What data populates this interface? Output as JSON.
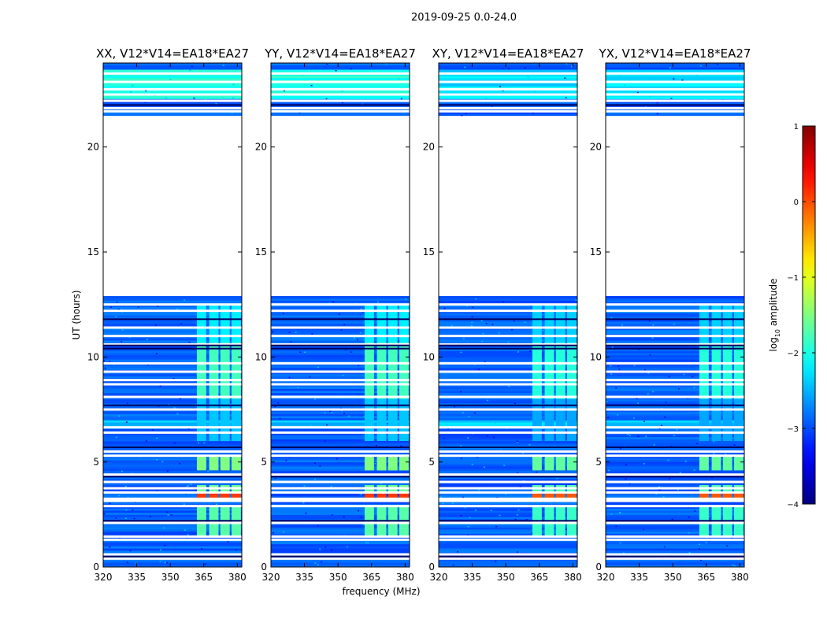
{
  "figure_title": "2019-09-25 0.0-24.0",
  "chart_data": {
    "type": "heatmap",
    "title": "2019-09-25 0.0-24.0",
    "xlabel": "frequency (MHz)",
    "ylabel": "UT (hours)",
    "xlim": [
      320,
      382
    ],
    "ylim": [
      0,
      24
    ],
    "xticks": [
      320,
      335,
      350,
      365,
      380
    ],
    "xtick_labels": [
      "320",
      "335",
      "350",
      "365",
      "380"
    ],
    "yticks": [
      0,
      5,
      10,
      15,
      20
    ],
    "ytick_labels": [
      "0",
      "5",
      "10",
      "15",
      "20"
    ],
    "panels": [
      {
        "title": "XX, V12*V14=EA18*EA27",
        "pol": "XX"
      },
      {
        "title": "YY, V12*V14=EA18*EA27",
        "pol": "YY"
      },
      {
        "title": "XY, V12*V14=EA18*EA27",
        "pol": "XY"
      },
      {
        "title": "YX, V12*V14=EA18*EA27",
        "pol": "YX"
      }
    ],
    "colorbar": {
      "label_main": "log",
      "label_sub": "10",
      "label_rest": " amplitude",
      "range": [
        -4,
        1
      ],
      "ticks": [
        1,
        0,
        -1,
        -2,
        -3,
        -4
      ],
      "tick_labels": [
        "1",
        "0",
        "−1",
        "−2",
        "−3",
        "−4"
      ],
      "colormap": "jet"
    },
    "data_gap_hours": [
      12.8,
      21.5
    ],
    "data_end_hours": 24.0,
    "flagged_time_rows_hours": [
      0.4,
      0.6,
      1.3,
      1.45,
      2.1,
      2.9,
      3.15,
      3.25,
      3.55,
      3.75,
      4.05,
      4.4,
      5.3,
      5.5,
      6.4,
      6.65,
      7.5,
      8.1,
      8.7,
      8.9,
      9.3,
      9.7,
      10.6,
      11.0,
      11.4,
      12.2,
      12.5,
      21.7,
      21.85,
      22.2,
      22.5,
      22.75,
      23.1,
      23.5
    ],
    "dark_time_rows_hours": [
      0.5,
      2.2,
      4.3,
      5.7,
      7.7,
      10.4,
      10.55,
      11.8,
      22.0
    ],
    "rfi_channel_centers_mhz": [
      364.0,
      369.5,
      374.5,
      379.5
    ],
    "rfi_channel_width_mhz": 4.2,
    "rfi_bands": [
      {
        "t0": 3.3,
        "t1": 3.55,
        "log_amp": 0.1
      },
      {
        "t0": 3.55,
        "t1": 3.9,
        "log_amp": -1.6
      },
      {
        "t0": 1.5,
        "t1": 2.9,
        "log_amp": -1.7
      },
      {
        "t0": 4.6,
        "t1": 5.35,
        "log_amp": -1.5
      },
      {
        "t0": 8.0,
        "t1": 10.7,
        "log_amp": -1.8
      },
      {
        "t0": 10.7,
        "t1": 12.5,
        "log_amp": -2.2
      },
      {
        "t0": 6.0,
        "t1": 8.0,
        "log_amp": -2.4
      }
    ],
    "background_log_amp": -2.9
  }
}
